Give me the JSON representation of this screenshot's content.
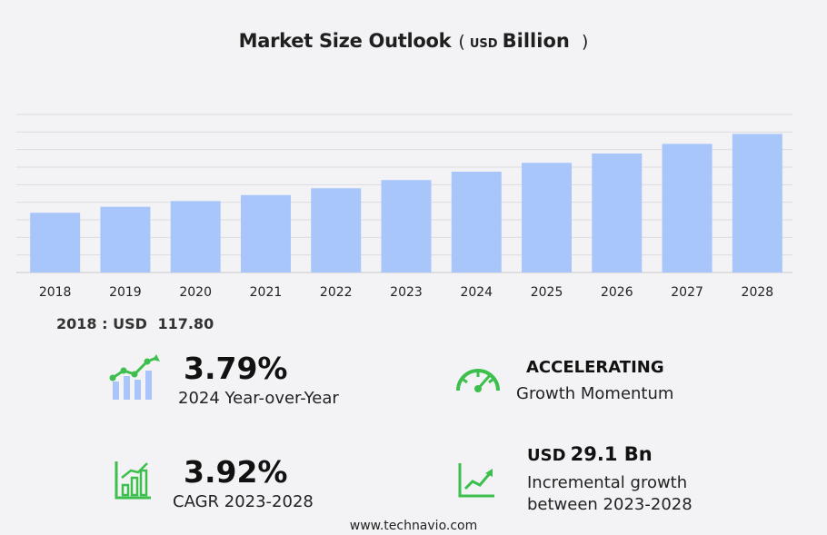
{
  "title": {
    "main": "Market Size Outlook",
    "open_paren": "(",
    "unit_currency": "USD",
    "unit_scale": "Billion",
    "close_paren": ")"
  },
  "base_year": {
    "label": "2018 : USD",
    "value": "117.80"
  },
  "stats": {
    "yoy": {
      "value": "3.79%",
      "label": "2024 Year-over-Year"
    },
    "momentum": {
      "value": "ACCELERATING",
      "label": "Growth Momentum"
    },
    "cagr": {
      "value": "3.92%",
      "label": "CAGR 2023-2028"
    },
    "incremental": {
      "currency": "USD",
      "value": "29.1 Bn",
      "label_line1": "Incremental growth",
      "label_line2": "between 2023-2028"
    }
  },
  "footer": "www.technavio.com",
  "colors": {
    "bar": "#a9c6fb",
    "accent_green": "#3dbf4e",
    "icon_blue": "#a9c6fb"
  },
  "chart_data": {
    "type": "bar",
    "categories": [
      "2018",
      "2019",
      "2020",
      "2021",
      "2022",
      "2023",
      "2024",
      "2025",
      "2026",
      "2027",
      "2028"
    ],
    "values": [
      117.8,
      121.6,
      125.2,
      129.0,
      133.3,
      138.5,
      143.8,
      149.4,
      155.3,
      161.4,
      167.7
    ],
    "ylim": [
      0,
      180
    ],
    "grid": true,
    "legend": "none"
  }
}
